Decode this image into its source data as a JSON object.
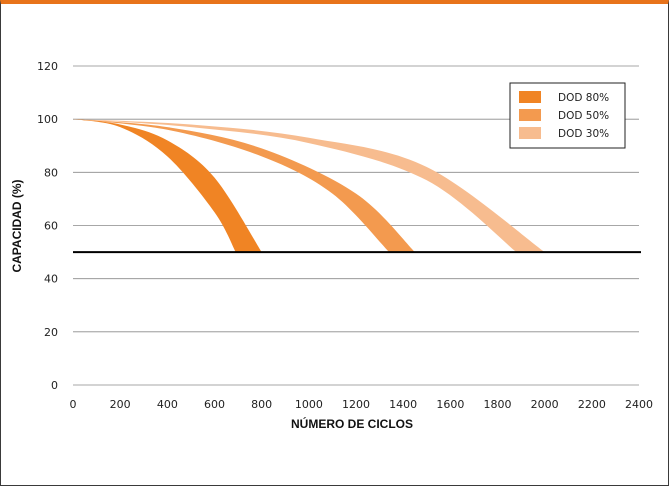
{
  "chart_data": {
    "type": "area",
    "xlabel": "NÚMERO DE CICLOS",
    "ylabel": "CAPACIDAD (%)",
    "xlim": [
      0,
      2400
    ],
    "ylim": [
      0,
      120
    ],
    "xticks": [
      0,
      200,
      400,
      600,
      800,
      1000,
      1200,
      1400,
      1600,
      1800,
      2000,
      2200,
      2400
    ],
    "yticks": [
      0,
      20,
      40,
      60,
      80,
      100,
      120
    ],
    "grid": "horizontal",
    "threshold": 50,
    "legend_position": "top-right",
    "series": [
      {
        "name": "DOD 80%",
        "color": "#f08424",
        "lower": {
          "x": [
            0,
            200,
            400,
            600,
            690
          ],
          "y": [
            100,
            97,
            86,
            65,
            50
          ]
        },
        "upper": {
          "x": [
            0,
            200,
            400,
            600,
            800
          ],
          "y": [
            100,
            98,
            92,
            78,
            50
          ]
        }
      },
      {
        "name": "DOD 50%",
        "color": "#f39a4f",
        "lower": {
          "x": [
            0,
            400,
            800,
            1100,
            1340
          ],
          "y": [
            100,
            96,
            86,
            72,
            50
          ]
        },
        "upper": {
          "x": [
            0,
            400,
            800,
            1200,
            1450
          ],
          "y": [
            100,
            97,
            89,
            72,
            50
          ]
        }
      },
      {
        "name": "DOD 30%",
        "color": "#f7bc8f",
        "lower": {
          "x": [
            0,
            500,
            1000,
            1500,
            1880
          ],
          "y": [
            100,
            97,
            91,
            77,
            50
          ]
        },
        "upper": {
          "x": [
            0,
            500,
            1000,
            1500,
            2000
          ],
          "y": [
            100,
            98,
            93,
            82,
            50
          ]
        }
      }
    ]
  }
}
